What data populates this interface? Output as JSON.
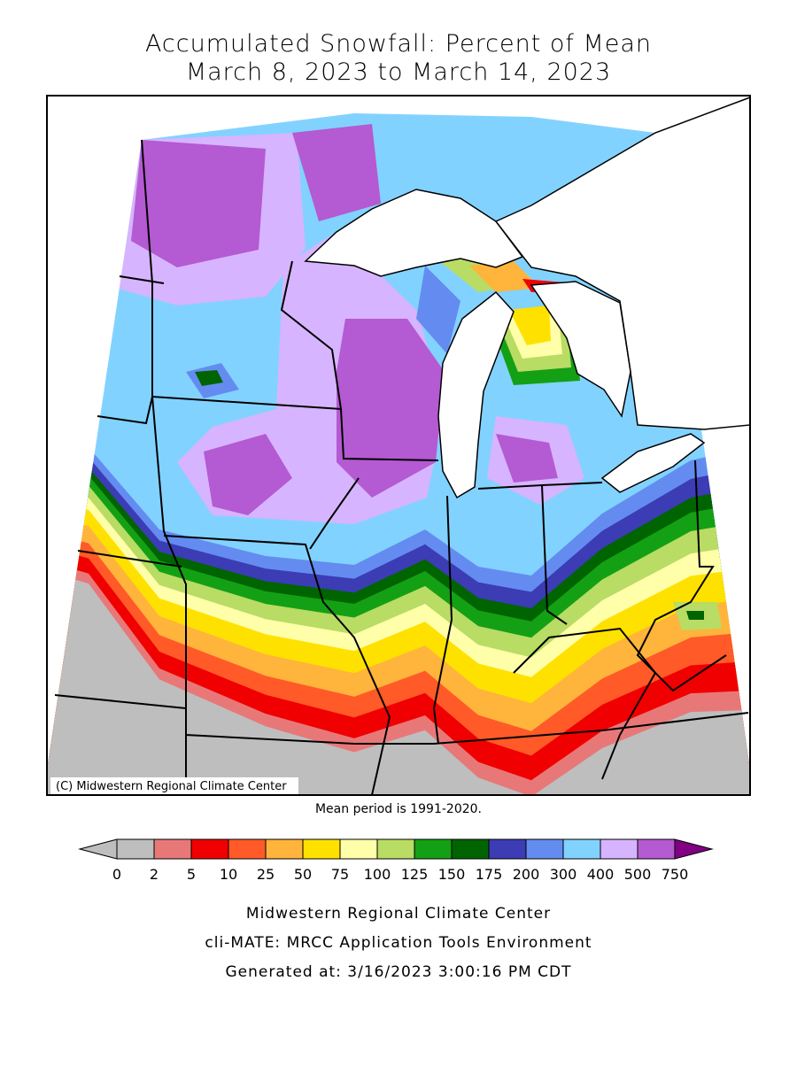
{
  "header": {
    "title_line1": "Accumulated Snowfall: Percent of Mean",
    "title_line2": "March 8, 2023 to March 14, 2023"
  },
  "map": {
    "copyright": "(C) Midwestern Regional Climate Center",
    "mean_period": "Mean period is 1991-2020."
  },
  "legend": {
    "labels": [
      0,
      2,
      5,
      10,
      25,
      50,
      75,
      100,
      125,
      150,
      175,
      200,
      300,
      400,
      500,
      750
    ],
    "colors": [
      "#bebebe",
      "#e87878",
      "#f00000",
      "#ff5a28",
      "#ffb43c",
      "#ffe100",
      "#ffffaa",
      "#b9dc64",
      "#14a014",
      "#006400",
      "#3c3cb4",
      "#648cf0",
      "#82d2ff",
      "#d7b4ff",
      "#b45ad2"
    ],
    "under_color": "#bebebe",
    "over_color": "#820082"
  },
  "footer": {
    "line1": "Midwestern Regional Climate Center",
    "line2": "cli-MATE: MRCC Application Tools Environment",
    "line3": "Generated at: 3/16/2023 3:00:16 PM CDT"
  }
}
